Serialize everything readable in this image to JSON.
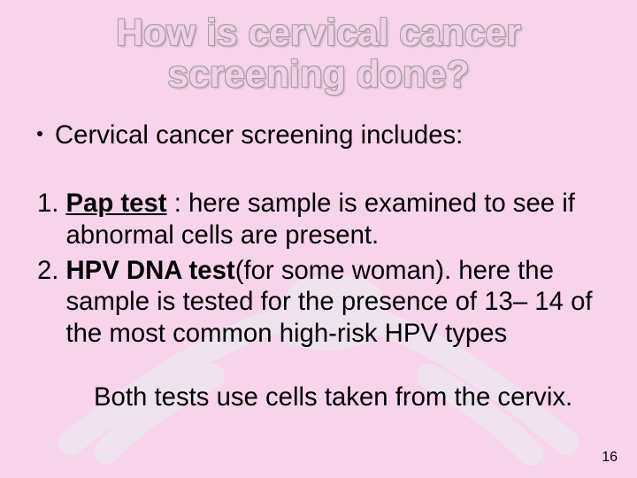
{
  "slide": {
    "background_color": "#f8d3ec",
    "handshake_overlay": {
      "stroke": "#e9f0f3",
      "stroke_width": 28,
      "opacity": 0.55
    },
    "title": {
      "line1": "How is cervical cancer",
      "line2": "screening done?",
      "font_size_pt": 32,
      "font_weight": 700,
      "fill_color": "#f3cfe9",
      "outline_color": "#a0a0a0"
    },
    "intro": {
      "text": "Cervical cancer screening  includes:",
      "font_size_pt": 22,
      "bullet_color": "#000000"
    },
    "list": {
      "font_size_pt": 22,
      "items": [
        {
          "num": "1.",
          "bold_lead": "Pap test",
          "bold_underline": true,
          "rest": " : here sample is examined to see if abnormal cells are present."
        },
        {
          "num": "2.",
          "bold_lead": "HPV DNA test",
          "bold_underline": false,
          "rest": "(for some woman). here the sample is tested for the presence of 13– 14 of the most common high-risk HPV types"
        }
      ]
    },
    "closing": {
      "text": "Both tests use cells taken from the cervix.",
      "font_size_pt": 22
    },
    "page_number": {
      "value": "16",
      "font_size_pt": 12
    }
  }
}
